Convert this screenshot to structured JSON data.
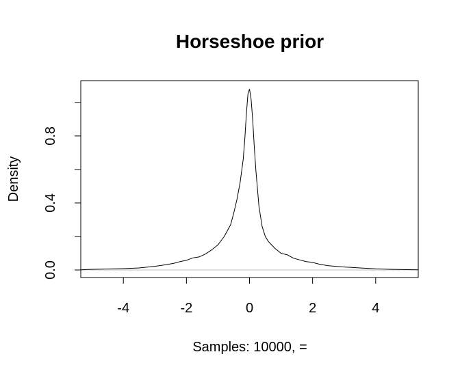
{
  "chart_data": {
    "type": "line",
    "title": "Horseshoe prior",
    "xlabel": "Samples: 10000,  =",
    "ylabel": "Density",
    "xlim": [
      -5.35,
      5.35
    ],
    "ylim": [
      -0.045,
      1.13
    ],
    "xticks": [
      -4,
      -2,
      0,
      2,
      4
    ],
    "yticks": [
      0.0,
      0.2,
      0.4,
      0.6,
      0.8,
      1.0
    ],
    "ytick_labels": [
      "0.0",
      "",
      "0.4",
      "",
      "0.8",
      ""
    ],
    "baseline": 0,
    "series": [
      {
        "x": [
          -5.35,
          -5.0,
          -4.5,
          -4.0,
          -3.5,
          -3.0,
          -2.7,
          -2.4,
          -2.2,
          -2.0,
          -1.8,
          -1.6,
          -1.4,
          -1.2,
          -1.0,
          -0.8,
          -0.6,
          -0.5,
          -0.4,
          -0.3,
          -0.2,
          -0.15,
          -0.1,
          -0.05,
          0.0,
          0.05,
          0.1,
          0.15,
          0.2,
          0.3,
          0.4,
          0.5,
          0.6,
          0.8,
          1.0,
          1.2,
          1.4,
          1.6,
          1.8,
          2.0,
          2.2,
          2.5,
          3.0,
          3.5,
          4.0,
          4.5,
          5.0,
          5.35
        ],
        "y": [
          0.001,
          0.004,
          0.006,
          0.008,
          0.012,
          0.022,
          0.03,
          0.04,
          0.05,
          0.058,
          0.072,
          0.078,
          0.095,
          0.12,
          0.15,
          0.2,
          0.27,
          0.34,
          0.42,
          0.52,
          0.66,
          0.78,
          0.93,
          1.05,
          1.08,
          1.02,
          0.9,
          0.74,
          0.6,
          0.38,
          0.26,
          0.2,
          0.17,
          0.13,
          0.1,
          0.09,
          0.07,
          0.06,
          0.05,
          0.045,
          0.035,
          0.025,
          0.018,
          0.012,
          0.007,
          0.004,
          0.002,
          0.001
        ]
      }
    ]
  }
}
